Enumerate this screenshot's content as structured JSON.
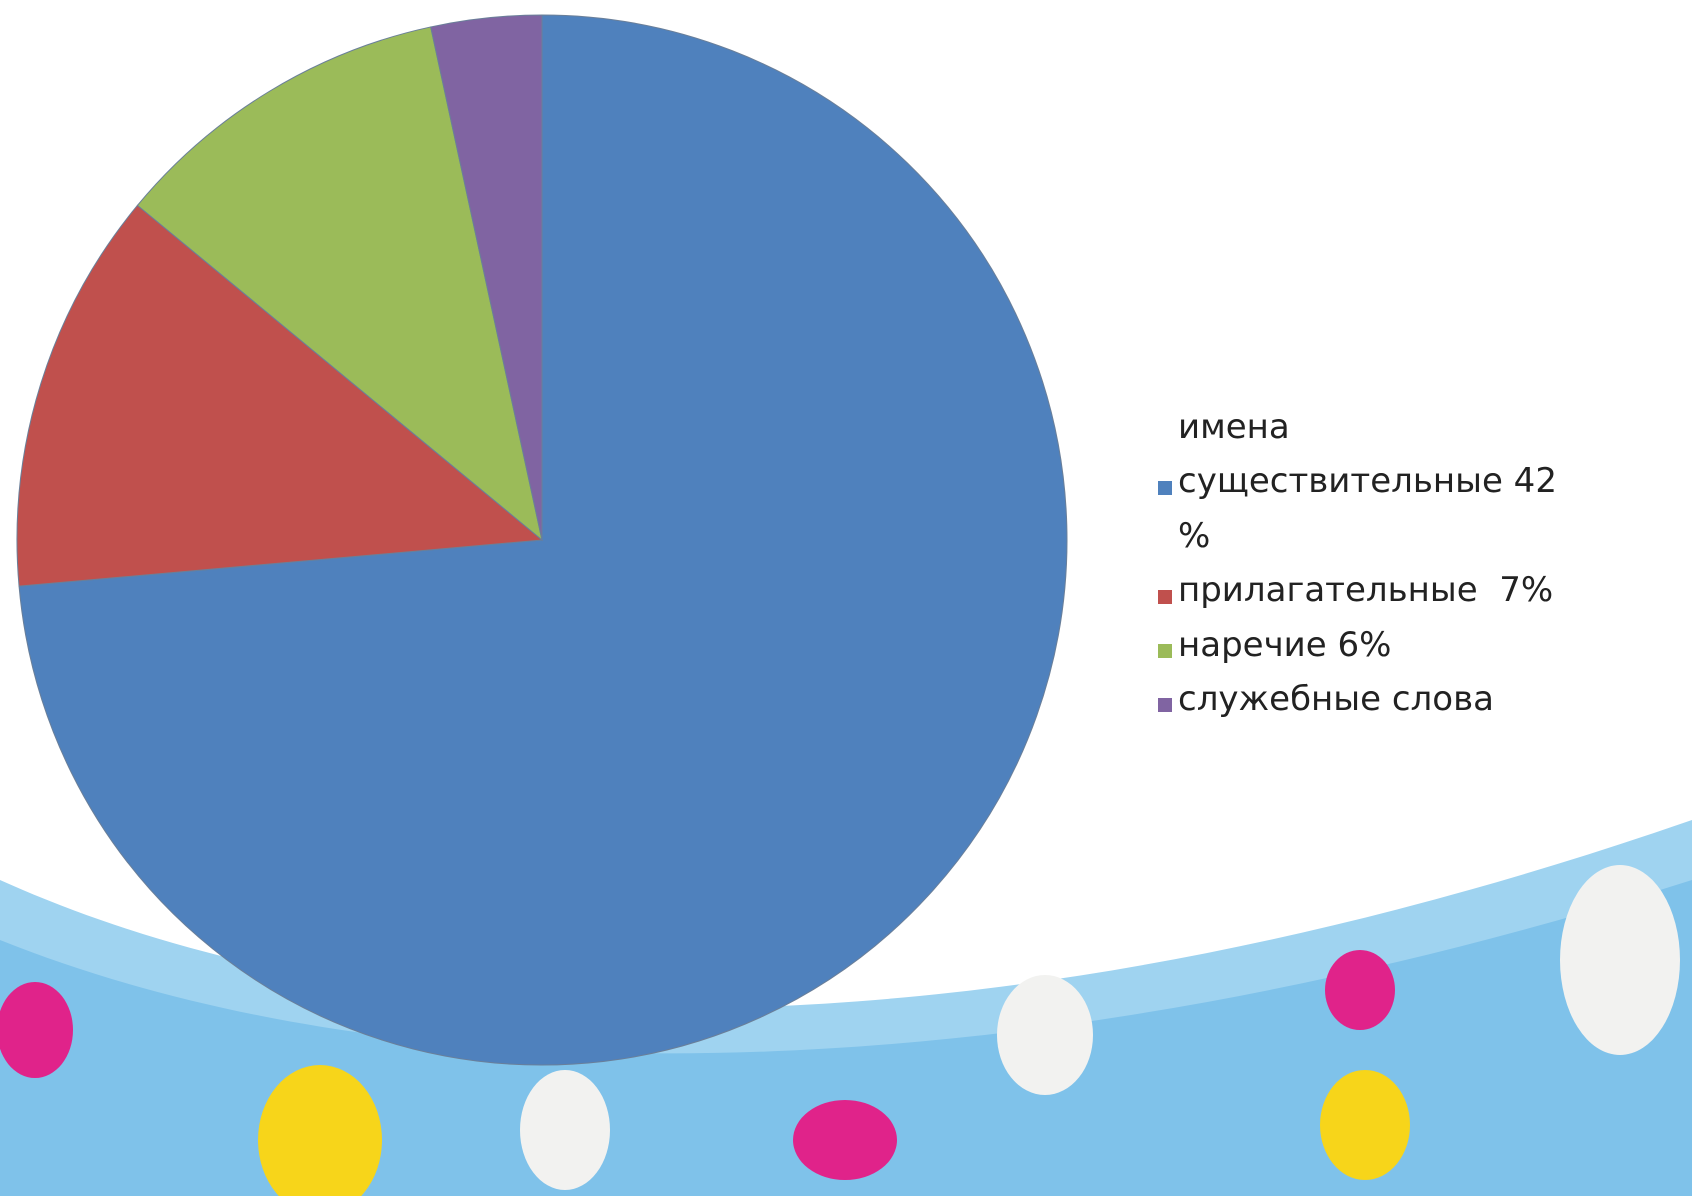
{
  "chart_data": {
    "type": "pie",
    "categories": [
      "имена существительные 42 %",
      "прилагательные  7%",
      "наречие 6%",
      "служебные слова"
    ],
    "values": [
      73.6,
      12.4,
      10.6,
      3.4
    ],
    "colors": [
      "#4f81bd",
      "#c0504d",
      "#9bbb59",
      "#8064a2"
    ],
    "legend": "right"
  }
}
